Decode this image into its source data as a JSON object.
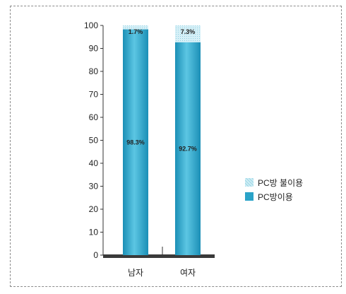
{
  "chart_data": {
    "type": "bar",
    "stacked": true,
    "categories": [
      "남자",
      "여자"
    ],
    "ylim": [
      0,
      100
    ],
    "yticks": [
      0,
      10,
      20,
      30,
      40,
      50,
      60,
      70,
      80,
      90,
      100
    ],
    "series": [
      {
        "name": "PC방이용",
        "values": [
          98.3,
          92.7
        ],
        "labels": [
          "98.3%",
          "92.7%"
        ],
        "color": "#2aa3c8"
      },
      {
        "name": "PC방 불이용",
        "values": [
          1.7,
          7.3
        ],
        "labels": [
          "1.7%",
          "7.3%"
        ],
        "color": "#cfeef5"
      }
    ],
    "legend": "right",
    "grid": false
  }
}
